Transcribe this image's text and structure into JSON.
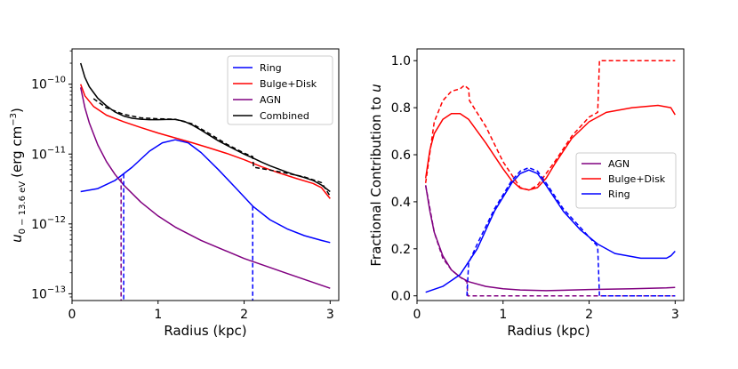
{
  "chart_data": [
    {
      "type": "line",
      "yscale": "log",
      "xlabel": "Radius (kpc)",
      "ylabel_main": "u",
      "ylabel_sub": "0 − 13.6 eV",
      "ylabel_units": "(erg cm",
      "ylabel_units_exp": "−3",
      "ylabel_units_close": ")",
      "xlim": [
        0,
        3.1
      ],
      "ylim": [
        8e-14,
        3.2e-10
      ],
      "xticks": [
        0,
        1,
        2,
        3
      ],
      "xtick_labels": [
        "0",
        "1",
        "2",
        "3"
      ],
      "yticks": [
        1e-13,
        1e-12,
        1e-11,
        1e-10
      ],
      "ytick_base": [
        "10",
        "10",
        "10",
        "10"
      ],
      "ytick_exp": [
        "−13",
        "−12",
        "−11",
        "−10"
      ],
      "legend_position": "upper-right",
      "series": [
        {
          "name": "Ring",
          "color": "#0000ff",
          "dashed": false,
          "x": [
            0.1,
            0.3,
            0.5,
            0.7,
            0.9,
            1.05,
            1.2,
            1.35,
            1.5,
            1.7,
            1.9,
            2.1,
            2.3,
            2.5,
            2.7,
            2.9,
            3.0
          ],
          "y": [
            2.9e-12,
            3.2e-12,
            4.2e-12,
            6.5e-12,
            1.1e-11,
            1.45e-11,
            1.6e-11,
            1.45e-11,
            1.05e-11,
            6e-12,
            3.3e-12,
            1.8e-12,
            1.15e-12,
            8.5e-13,
            6.8e-13,
            5.8e-13,
            5.4e-13
          ]
        },
        {
          "name": "Bulge+Disk",
          "color": "#ff0000",
          "dashed": false,
          "x": [
            0.1,
            0.15,
            0.25,
            0.4,
            0.6,
            0.8,
            1.0,
            1.2,
            1.4,
            1.6,
            1.8,
            2.0,
            2.2,
            2.4,
            2.6,
            2.8,
            2.9,
            3.0
          ],
          "y": [
            1e-10,
            6.8e-11,
            4.8e-11,
            3.6e-11,
            2.9e-11,
            2.4e-11,
            2e-11,
            1.7e-11,
            1.45e-11,
            1.22e-11,
            1.02e-11,
            8.3e-12,
            6.6e-12,
            5.4e-12,
            4.5e-12,
            3.8e-12,
            3.3e-12,
            2.3e-12
          ]
        },
        {
          "name": "AGN",
          "color": "#800080",
          "dashed": false,
          "x": [
            0.1,
            0.15,
            0.2,
            0.3,
            0.4,
            0.5,
            0.6,
            0.8,
            1.0,
            1.2,
            1.5,
            2.0,
            2.5,
            3.0
          ],
          "y": [
            9e-11,
            4.6e-11,
            2.8e-11,
            1.35e-11,
            7.8e-12,
            5.1e-12,
            3.6e-12,
            2.05e-12,
            1.3e-12,
            9e-13,
            5.8e-13,
            3.2e-13,
            1.95e-13,
            1.2e-13
          ]
        },
        {
          "name": "Combined",
          "color": "#000000",
          "dashed": false,
          "x": [
            0.1,
            0.15,
            0.2,
            0.3,
            0.4,
            0.5,
            0.6,
            0.7,
            0.8,
            0.9,
            1.0,
            1.1,
            1.2,
            1.3,
            1.4,
            1.5,
            1.6,
            1.7,
            1.8,
            1.9,
            2.0,
            2.1,
            2.2,
            2.3,
            2.4,
            2.5,
            2.6,
            2.7,
            2.8,
            2.9,
            3.0
          ],
          "y": [
            2e-10,
            1.25e-10,
            9.2e-11,
            6.3e-11,
            4.9e-11,
            4e-11,
            3.5e-11,
            3.25e-11,
            3.15e-11,
            3.1e-11,
            3.1e-11,
            3.12e-11,
            3.12e-11,
            2.95e-11,
            2.6e-11,
            2.2e-11,
            1.85e-11,
            1.55e-11,
            1.33e-11,
            1.15e-11,
            1e-11,
            8.8e-12,
            7.7e-12,
            6.8e-12,
            6.1e-12,
            5.5e-12,
            5e-12,
            4.6e-12,
            4.2e-12,
            3.6e-12,
            2.9e-12
          ]
        },
        {
          "name": "Combined (dashed)",
          "color": "#000000",
          "dashed": true,
          "x": [
            0.25,
            0.4,
            0.6,
            0.8,
            1.0,
            1.2,
            1.4,
            1.6,
            1.8,
            2.0,
            2.1,
            2.11,
            2.3,
            2.5,
            2.7,
            2.9,
            3.0
          ],
          "y": [
            6.2e-11,
            4.6e-11,
            3.7e-11,
            3.3e-11,
            3.2e-11,
            3.15e-11,
            2.7e-11,
            1.95e-11,
            1.38e-11,
            1.03e-11,
            9.2e-12,
            6.5e-12,
            5.9e-12,
            5.3e-12,
            4.7e-12,
            3.9e-12,
            2.5e-12
          ]
        },
        {
          "name": "AGN (dashed)",
          "color": "#800080",
          "dashed": true,
          "x": [
            0.57,
            0.57
          ],
          "y": [
            4.5e-12,
            8e-14
          ]
        },
        {
          "name": "Ring (dashed)",
          "color": "#0000ff",
          "dashed": true,
          "x": [
            0.6,
            0.6
          ],
          "y": [
            5.2e-12,
            8e-14
          ]
        },
        {
          "name": "Ring (dashed, outer)",
          "color": "#0000ff",
          "dashed": true,
          "x": [
            2.1,
            2.1
          ],
          "y": [
            1.8e-12,
            8e-14
          ]
        }
      ],
      "legend": [
        {
          "label": "Ring",
          "color": "#0000ff"
        },
        {
          "label": "Bulge+Disk",
          "color": "#ff0000"
        },
        {
          "label": "AGN",
          "color": "#800080"
        },
        {
          "label": "Combined",
          "color": "#000000"
        }
      ]
    },
    {
      "type": "line",
      "yscale": "linear",
      "xlabel": "Radius (kpc)",
      "ylabel_main": "Fractional Contribution to ",
      "ylabel_var": "u",
      "xlim": [
        0,
        3.1
      ],
      "ylim": [
        -0.02,
        1.05
      ],
      "xticks": [
        0,
        1,
        2,
        3
      ],
      "xtick_labels": [
        "0",
        "1",
        "2",
        "3"
      ],
      "yticks": [
        0.0,
        0.2,
        0.4,
        0.6,
        0.8,
        1.0
      ],
      "ytick_labels": [
        "0.0",
        "0.2",
        "0.4",
        "0.6",
        "0.8",
        "1.0"
      ],
      "legend_position": "center-right",
      "series": [
        {
          "name": "AGN",
          "color": "#800080",
          "dashed": false,
          "x": [
            0.1,
            0.15,
            0.2,
            0.3,
            0.4,
            0.5,
            0.6,
            0.8,
            1.0,
            1.2,
            1.5,
            2.0,
            2.5,
            2.9,
            3.0
          ],
          "y": [
            0.47,
            0.36,
            0.27,
            0.17,
            0.11,
            0.08,
            0.06,
            0.04,
            0.03,
            0.025,
            0.022,
            0.027,
            0.03,
            0.034,
            0.036
          ]
        },
        {
          "name": "Bulge+Disk",
          "color": "#ff0000",
          "dashed": false,
          "x": [
            0.1,
            0.15,
            0.2,
            0.3,
            0.4,
            0.5,
            0.6,
            0.8,
            1.0,
            1.1,
            1.2,
            1.3,
            1.4,
            1.5,
            1.6,
            1.8,
            2.0,
            2.2,
            2.5,
            2.8,
            2.95,
            3.0
          ],
          "y": [
            0.5,
            0.62,
            0.69,
            0.75,
            0.775,
            0.775,
            0.75,
            0.65,
            0.54,
            0.49,
            0.458,
            0.45,
            0.46,
            0.5,
            0.56,
            0.67,
            0.74,
            0.78,
            0.8,
            0.81,
            0.8,
            0.77
          ]
        },
        {
          "name": "Ring",
          "color": "#0000ff",
          "dashed": false,
          "x": [
            0.1,
            0.3,
            0.5,
            0.7,
            0.9,
            1.1,
            1.2,
            1.3,
            1.4,
            1.5,
            1.7,
            1.9,
            2.1,
            2.3,
            2.6,
            2.9,
            2.95,
            3.0
          ],
          "y": [
            0.015,
            0.04,
            0.09,
            0.2,
            0.36,
            0.48,
            0.52,
            0.535,
            0.52,
            0.47,
            0.36,
            0.28,
            0.22,
            0.18,
            0.16,
            0.16,
            0.17,
            0.19
          ]
        },
        {
          "name": "AGN (dashed)",
          "color": "#800080",
          "dashed": true,
          "x": [
            0.1,
            0.2,
            0.3,
            0.4,
            0.5,
            0.58,
            0.59,
            1.0,
            2.0,
            3.0
          ],
          "y": [
            0.47,
            0.27,
            0.16,
            0.11,
            0.08,
            0.06,
            0.0,
            0.0,
            0.0,
            0.0
          ]
        },
        {
          "name": "Bulge+Disk (dashed)",
          "color": "#ff0000",
          "dashed": true,
          "x": [
            0.1,
            0.2,
            0.3,
            0.4,
            0.5,
            0.55,
            0.6,
            0.61,
            0.8,
            1.0,
            1.2,
            1.3,
            1.4,
            1.6,
            1.8,
            2.0,
            2.1,
            2.12,
            2.2,
            2.5,
            3.0
          ],
          "y": [
            0.48,
            0.74,
            0.83,
            0.87,
            0.88,
            0.895,
            0.88,
            0.83,
            0.72,
            0.57,
            0.46,
            0.45,
            0.47,
            0.57,
            0.68,
            0.76,
            0.78,
            1.0,
            1.0,
            1.0,
            1.0
          ]
        },
        {
          "name": "Ring (dashed)",
          "color": "#0000ff",
          "dashed": true,
          "x": [
            0.58,
            0.6,
            0.7,
            0.9,
            1.1,
            1.2,
            1.3,
            1.4,
            1.5,
            1.7,
            1.9,
            2.05,
            2.1,
            2.12,
            2.5,
            3.0
          ],
          "y": [
            0.0,
            0.14,
            0.22,
            0.37,
            0.49,
            0.53,
            0.545,
            0.53,
            0.48,
            0.37,
            0.29,
            0.23,
            0.21,
            0.0,
            0.0,
            0.0
          ]
        }
      ],
      "legend": [
        {
          "label": "AGN",
          "color": "#800080"
        },
        {
          "label": "Bulge+Disk",
          "color": "#ff0000"
        },
        {
          "label": "Ring",
          "color": "#0000ff"
        }
      ]
    }
  ]
}
